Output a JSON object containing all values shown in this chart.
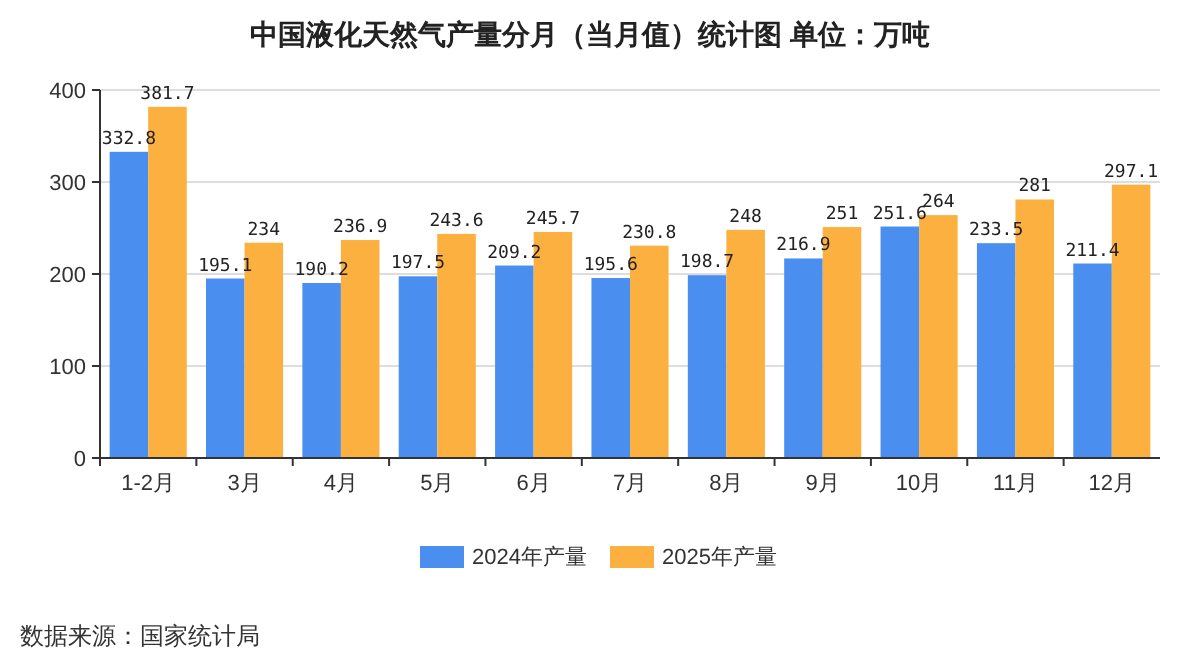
{
  "chart_data": {
    "type": "bar",
    "title": "中国液化天然气产量分月（当月值）统计图 单位：万吨",
    "categories": [
      "1-2月",
      "3月",
      "4月",
      "5月",
      "6月",
      "7月",
      "8月",
      "9月",
      "10月",
      "11月",
      "12月"
    ],
    "series": [
      {
        "name": "2024年产量",
        "color": "#4a8ff0",
        "values": [
          332.8,
          195.1,
          190.2,
          197.5,
          209.2,
          195.6,
          198.7,
          216.9,
          251.6,
          233.5,
          211.4
        ]
      },
      {
        "name": "2025年产量",
        "color": "#fbb040",
        "values": [
          381.7,
          234,
          236.9,
          243.6,
          245.7,
          230.8,
          248,
          251,
          264,
          281,
          297.1
        ]
      }
    ],
    "ylim": [
      0,
      400
    ],
    "yticks": [
      0,
      100,
      200,
      300,
      400
    ],
    "grid": "y",
    "legend": "bottom",
    "data_labels": true,
    "annotations": [
      "数据来源：国家统计局"
    ]
  }
}
